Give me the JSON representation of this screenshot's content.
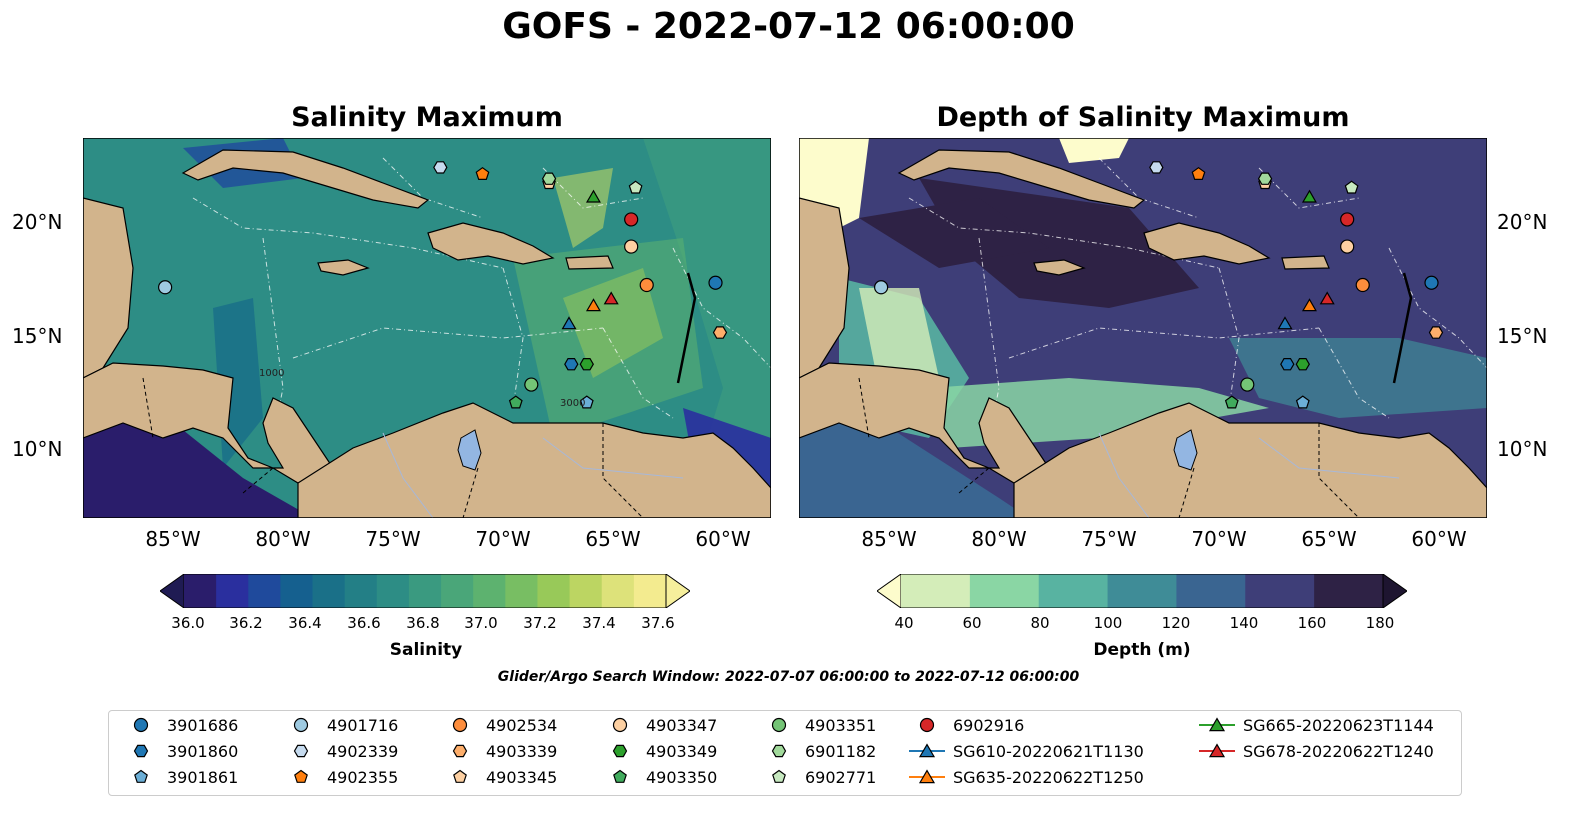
{
  "title": "GOFS - 2022-07-12 06:00:00",
  "search_window": "Glider/Argo Search Window: 2022-07-07 06:00:00 to 2022-07-12 06:00:00",
  "panels": [
    {
      "title": "Salinity Maximum",
      "colorbar": {
        "label": "Salinity",
        "ticks": [
          "36.0",
          "36.2",
          "36.4",
          "36.6",
          "36.8",
          "37.0",
          "37.2",
          "37.4",
          "37.6"
        ],
        "colors": [
          "#2a1d6b",
          "#2a2f9e",
          "#1f4a9c",
          "#15608f",
          "#1a7088",
          "#237f86",
          "#2d8d85",
          "#3a9a80",
          "#4aa679",
          "#5db26f",
          "#78be63",
          "#98c959",
          "#bcd562",
          "#dde27a",
          "#f3eb8f"
        ],
        "extend_min": "#1f1b53",
        "extend_max": "#f6ef9c"
      }
    },
    {
      "title": "Depth of Salinity Maximum",
      "colorbar": {
        "label": "Depth (m)",
        "ticks": [
          "40",
          "60",
          "80",
          "100",
          "120",
          "140",
          "160",
          "180"
        ],
        "colors": [
          "#d4edb9",
          "#8ad6a4",
          "#58b3a1",
          "#3f8c97",
          "#3a6591",
          "#3e3e78",
          "#2e2245"
        ],
        "extend_min": "#fdfccc",
        "extend_max": "#1e1530"
      }
    }
  ],
  "map": {
    "lat_labels": [
      "20°N",
      "15°N",
      "10°N"
    ],
    "lon_labels": [
      "85°W",
      "80°W",
      "75°W",
      "70°W",
      "65°W",
      "60°W"
    ],
    "land_color": "#d2b48c",
    "lake_color": "#93b6e2",
    "contour_labels": [
      "1000",
      "1000",
      "3000"
    ]
  },
  "legend": {
    "items": [
      {
        "label": "3901686",
        "marker": "circle",
        "color": "#1f77b4"
      },
      {
        "label": "3901860",
        "marker": "hexagon",
        "color": "#1f77b4"
      },
      {
        "label": "3901861",
        "marker": "pentagon",
        "color": "#6baed6"
      },
      {
        "label": "4901716",
        "marker": "circle",
        "color": "#9ecae1"
      },
      {
        "label": "4902339",
        "marker": "hexagon",
        "color": "#c6dbef"
      },
      {
        "label": "4902355",
        "marker": "pentagon",
        "color": "#ff7f0e"
      },
      {
        "label": "4902534",
        "marker": "circle",
        "color": "#fd8d3c"
      },
      {
        "label": "4903339",
        "marker": "hexagon",
        "color": "#fdae6b"
      },
      {
        "label": "4903345",
        "marker": "pentagon",
        "color": "#fdd0a2"
      },
      {
        "label": "4903347",
        "marker": "circle",
        "color": "#fdd0a2"
      },
      {
        "label": "4903349",
        "marker": "hexagon",
        "color": "#2ca02c"
      },
      {
        "label": "4903350",
        "marker": "pentagon",
        "color": "#41ab5d"
      },
      {
        "label": "4903351",
        "marker": "circle",
        "color": "#74c476"
      },
      {
        "label": "6901182",
        "marker": "hexagon",
        "color": "#a1d99b"
      },
      {
        "label": "6902771",
        "marker": "pentagon",
        "color": "#c7e9c0"
      },
      {
        "label": "6902916",
        "marker": "circle",
        "color": "#d62728"
      },
      {
        "label": "SG610-20220621T1130",
        "marker": "triangle-line",
        "color": "#1f77b4"
      },
      {
        "label": "SG635-20220622T1250",
        "marker": "triangle-line",
        "color": "#ff7f0e"
      },
      {
        "label": "SG665-20220623T1144",
        "marker": "triangle-line",
        "color": "#2ca02c"
      },
      {
        "label": "SG678-20220622T1240",
        "marker": "triangle-line",
        "color": "#d62728"
      }
    ]
  },
  "observations": [
    {
      "id": "3901686",
      "lon": -60.5,
      "lat": 17.4
    },
    {
      "id": "3901860",
      "lon": -67.0,
      "lat": 13.8
    },
    {
      "id": "3901861",
      "lon": -66.3,
      "lat": 12.1
    },
    {
      "id": "4901716",
      "lon": -85.3,
      "lat": 17.2
    },
    {
      "id": "4902339",
      "lon": -72.9,
      "lat": 22.5
    },
    {
      "id": "4902355",
      "lon": -71.0,
      "lat": 22.2
    },
    {
      "id": "4902534",
      "lon": -63.6,
      "lat": 17.3
    },
    {
      "id": "4903339",
      "lon": -60.3,
      "lat": 15.2
    },
    {
      "id": "4903345",
      "lon": -68.0,
      "lat": 21.8
    },
    {
      "id": "4903347",
      "lon": -64.3,
      "lat": 19.0
    },
    {
      "id": "4903349",
      "lon": -66.3,
      "lat": 13.8
    },
    {
      "id": "4903350",
      "lon": -69.5,
      "lat": 12.1
    },
    {
      "id": "4903351",
      "lon": -68.8,
      "lat": 12.9
    },
    {
      "id": "6901182",
      "lon": -68.0,
      "lat": 22.0
    },
    {
      "id": "6902771",
      "lon": -64.1,
      "lat": 21.6
    },
    {
      "id": "6902916",
      "lon": -64.3,
      "lat": 20.2
    },
    {
      "id": "SG610-20220621T1130",
      "lon": -67.1,
      "lat": 15.6
    },
    {
      "id": "SG635-20220622T1250",
      "lon": -66.0,
      "lat": 16.4
    },
    {
      "id": "SG665-20220623T1144",
      "lon": -66.0,
      "lat": 21.2
    },
    {
      "id": "SG678-20220622T1240",
      "lon": -65.2,
      "lat": 16.7
    }
  ]
}
